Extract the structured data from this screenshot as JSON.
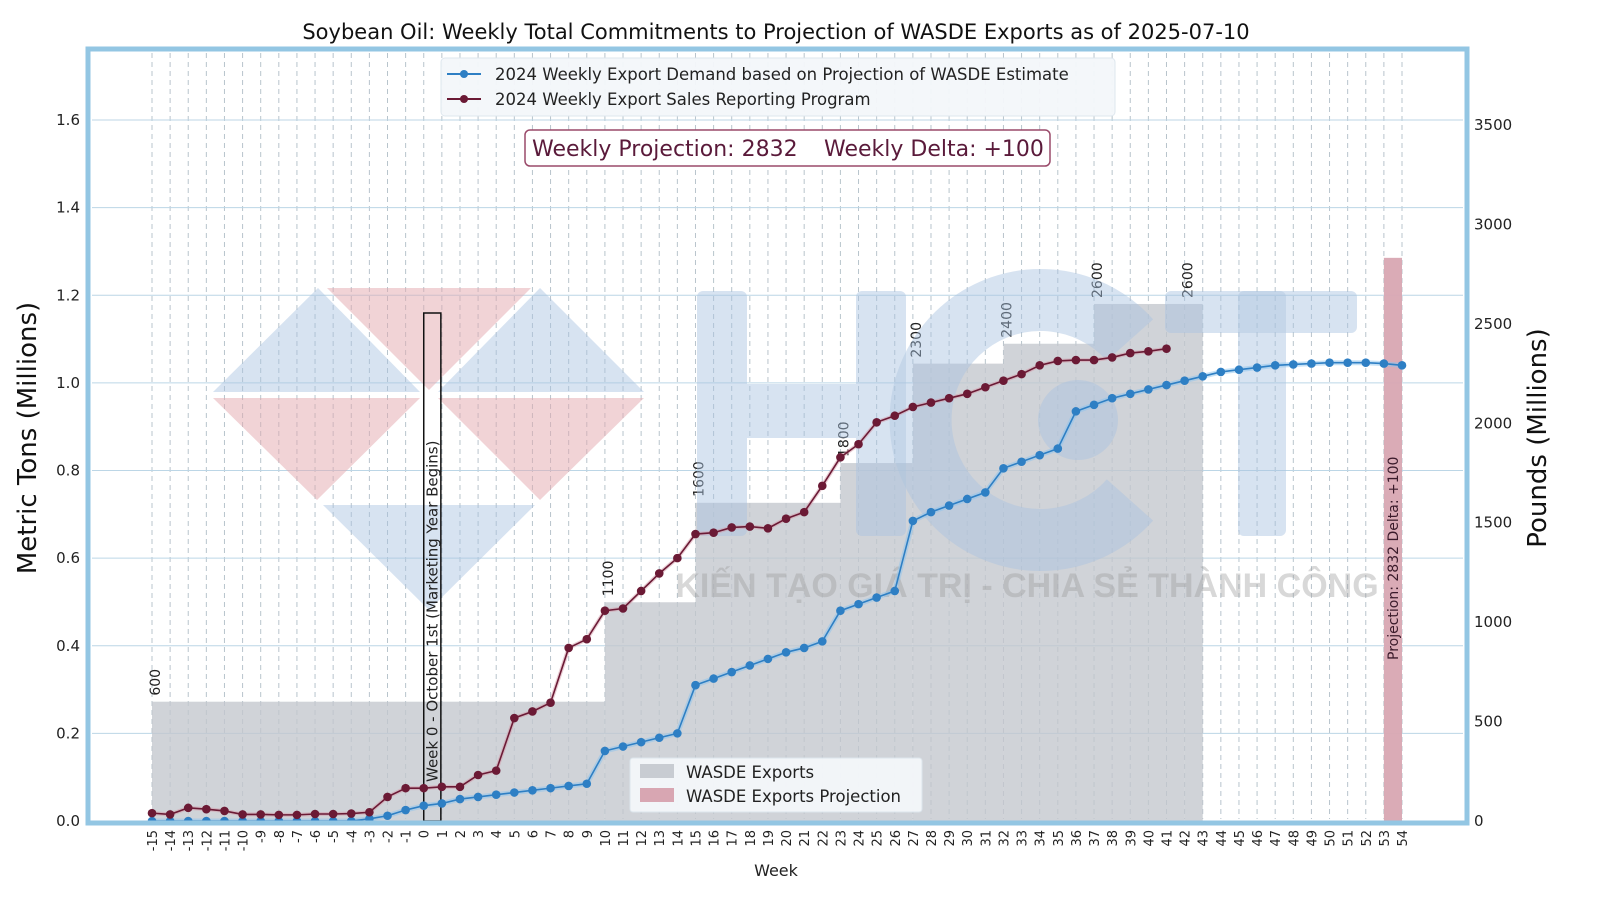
{
  "chart_data": {
    "type": "line",
    "title": "Soybean Oil: Weekly Total Commitments to Projection of WASDE Exports as of 2025-07-10",
    "xlabel": "Week",
    "ylabel_left": "Metric Tons (Millions)",
    "ylabel_right": "Pounds (Millions)",
    "xlim": [
      -15,
      54
    ],
    "ylim_left": [
      0,
      1.75
    ],
    "ylim_right": [
      0,
      3860
    ],
    "yticks_left": [
      "0.0",
      "0.2",
      "0.4",
      "0.6",
      "0.8",
      "1.0",
      "1.2",
      "1.4",
      "1.6"
    ],
    "yticks_right": [
      "0",
      "500",
      "1000",
      "1500",
      "2000",
      "2500",
      "3000",
      "3500"
    ],
    "xticks": [
      "-15",
      "-14",
      "-13",
      "-12",
      "-11",
      "-10",
      "-9",
      "-8",
      "-7",
      "-6",
      "-5",
      "-4",
      "-3",
      "-2",
      "-1",
      "0",
      "1",
      "2",
      "3",
      "4",
      "5",
      "6",
      "7",
      "8",
      "9",
      "10",
      "11",
      "12",
      "13",
      "14",
      "15",
      "16",
      "17",
      "18",
      "19",
      "20",
      "21",
      "22",
      "23",
      "24",
      "25",
      "26",
      "27",
      "28",
      "29",
      "30",
      "31",
      "32",
      "33",
      "34",
      "35",
      "36",
      "37",
      "38",
      "39",
      "40",
      "41",
      "42",
      "43",
      "44",
      "45",
      "46",
      "47",
      "48",
      "49",
      "50",
      "51",
      "52",
      "53",
      "54"
    ],
    "grid": true,
    "legend_top": [
      {
        "label": "2024 Weekly Export Demand based on Projection of WASDE Estimate",
        "color": "#2e7fc4"
      },
      {
        "label": "2024 Weekly Export Sales Reporting Program",
        "color": "#6b1a35"
      }
    ],
    "legend_bottom": [
      {
        "label": "WASDE Exports",
        "color": "#c8ccd2"
      },
      {
        "label": "WASDE Exports Projection",
        "color": "#d8a6b2"
      }
    ],
    "info_box": {
      "projection_label": "Weekly Projection: 2832",
      "delta_label": "Weekly Delta: +100"
    },
    "week0_annotation": "Week 0 - October 1st (Marketing Year Begins)",
    "projection_bar": {
      "week": 53,
      "value_pounds": 2832,
      "label": "Projection: 2832    Delta: +100"
    },
    "wasde_steps": [
      {
        "start": -15,
        "end": 9,
        "value_pounds": 600,
        "label": "600"
      },
      {
        "start": 10,
        "end": 14,
        "value_pounds": 1100,
        "label": "1100"
      },
      {
        "start": 15,
        "end": 22,
        "value_pounds": 1600,
        "label": "1600"
      },
      {
        "start": 23,
        "end": 26,
        "value_pounds": 1800,
        "label": "1800"
      },
      {
        "start": 27,
        "end": 31,
        "value_pounds": 2300,
        "label": "2300"
      },
      {
        "start": 32,
        "end": 36,
        "value_pounds": 2400,
        "label": "2400"
      },
      {
        "start": 37,
        "end": 41,
        "value_pounds": 2600,
        "label": "2600"
      },
      {
        "start": 42,
        "end": 42,
        "value_pounds": 2600,
        "label": "2600"
      }
    ],
    "series": [
      {
        "name": "2024 Weekly Export Demand based on Projection of WASDE Estimate",
        "color": "#2e7fc4",
        "x": [
          -15,
          -14,
          -13,
          -12,
          -11,
          -10,
          -9,
          -8,
          -7,
          -6,
          -5,
          -4,
          -3,
          -2,
          -1,
          0,
          1,
          2,
          3,
          4,
          5,
          6,
          7,
          8,
          9,
          10,
          11,
          12,
          13,
          14,
          15,
          16,
          17,
          18,
          19,
          20,
          21,
          22,
          23,
          24,
          25,
          26,
          27,
          28,
          29,
          30,
          31,
          32,
          33,
          34,
          35,
          36,
          37,
          38,
          39,
          40,
          41,
          42,
          43,
          44,
          45,
          46,
          47,
          48,
          49,
          50,
          51,
          52,
          53,
          54
        ],
        "values": [
          0.0,
          0.0,
          0.0,
          0.0,
          0.0,
          0.0,
          0.0,
          0.0,
          0.0,
          0.0,
          0.0,
          0.0,
          0.005,
          0.012,
          0.025,
          0.035,
          0.04,
          0.05,
          0.055,
          0.06,
          0.065,
          0.07,
          0.075,
          0.08,
          0.085,
          0.16,
          0.17,
          0.18,
          0.19,
          0.2,
          0.31,
          0.325,
          0.34,
          0.355,
          0.37,
          0.385,
          0.395,
          0.41,
          0.48,
          0.495,
          0.51,
          0.525,
          0.685,
          0.705,
          0.72,
          0.735,
          0.75,
          0.805,
          0.82,
          0.835,
          0.85,
          0.935,
          0.95,
          0.965,
          0.975,
          0.985,
          0.995,
          1.005,
          1.015,
          1.025,
          1.03,
          1.035,
          1.04,
          1.042,
          1.044,
          1.046,
          1.046,
          1.046,
          1.044,
          1.04
        ]
      },
      {
        "name": "2024 Weekly Export Sales Reporting Program",
        "color": "#6b1a35",
        "x": [
          -15,
          -14,
          -13,
          -12,
          -11,
          -10,
          -9,
          -8,
          -7,
          -6,
          -5,
          -4,
          -3,
          -2,
          -1,
          0,
          1,
          2,
          3,
          4,
          5,
          6,
          7,
          8,
          9,
          10,
          11,
          12,
          13,
          14,
          15,
          16,
          17,
          18,
          19,
          20,
          21,
          22,
          23,
          24,
          25,
          26,
          27,
          28,
          29,
          30,
          31,
          32,
          33,
          34,
          35,
          36,
          37,
          38,
          39,
          40,
          41
        ],
        "values": [
          0.018,
          0.015,
          0.03,
          0.027,
          0.023,
          0.015,
          0.015,
          0.014,
          0.014,
          0.016,
          0.016,
          0.017,
          0.02,
          0.055,
          0.075,
          0.075,
          0.078,
          0.078,
          0.105,
          0.115,
          0.235,
          0.25,
          0.27,
          0.395,
          0.415,
          0.48,
          0.485,
          0.525,
          0.565,
          0.6,
          0.655,
          0.658,
          0.67,
          0.672,
          0.668,
          0.69,
          0.705,
          0.765,
          0.83,
          0.86,
          0.91,
          0.925,
          0.945,
          0.955,
          0.965,
          0.975,
          0.99,
          1.005,
          1.02,
          1.04,
          1.05,
          1.052,
          1.052,
          1.058,
          1.068,
          1.072,
          1.078
        ]
      }
    ]
  },
  "watermark": {
    "brand": "HCT",
    "tagline": "KIẾN TẠO GIÁ TRỊ - CHIA SẺ THÀNH CÔNG"
  }
}
